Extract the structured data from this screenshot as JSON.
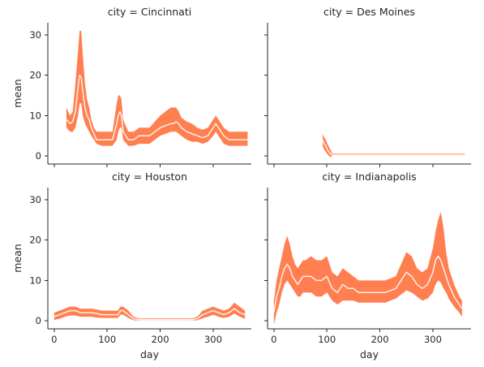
{
  "chart_data": {
    "type": "line",
    "layout": "facet-grid-2x2",
    "facet_variable": "city",
    "facet_title_template": "city = {}",
    "xlabel": "day",
    "ylabel": "mean",
    "xlim": [
      -12,
      372
    ],
    "ylim": [
      -2,
      33
    ],
    "xticks": [
      0,
      100,
      200,
      300
    ],
    "yticks": [
      0,
      10,
      20,
      30
    ],
    "grid": false,
    "colors": {
      "band": "#ff7f50",
      "line": "#fff0e6"
    },
    "band_note": "upper/lower bound band around mean line",
    "facets": [
      {
        "city": "Cincinnati",
        "title": "city = Cincinnati",
        "x": [
          23,
          30,
          35,
          40,
          45,
          48,
          51,
          54,
          58,
          62,
          66,
          70,
          75,
          80,
          90,
          100,
          110,
          118,
          121,
          124,
          127,
          130,
          140,
          150,
          160,
          170,
          180,
          190,
          200,
          210,
          220,
          225,
          230,
          235,
          240,
          250,
          260,
          270,
          280,
          290,
          300,
          305,
          310,
          320,
          330,
          340,
          350,
          360,
          365
        ],
        "mean": [
          9,
          8,
          8.5,
          11,
          17,
          20,
          19.5,
          16,
          12,
          10,
          9,
          7,
          5.5,
          4,
          4,
          4,
          4,
          8,
          10,
          11,
          10,
          6,
          4,
          4,
          5,
          5,
          5,
          6,
          7,
          7.5,
          8,
          8,
          8.5,
          8,
          7,
          6,
          5.5,
          5,
          4.5,
          5,
          7,
          8,
          7,
          5,
          4,
          4,
          4,
          4,
          4
        ],
        "lower": [
          7,
          6,
          6,
          7,
          10,
          13,
          13,
          10,
          8,
          7,
          6,
          5,
          4,
          3,
          2.5,
          2.5,
          2.5,
          4,
          6,
          7,
          7,
          4,
          2.5,
          2.5,
          3,
          3,
          3,
          4,
          5,
          5.5,
          6,
          6,
          6,
          5.5,
          5,
          4,
          3.5,
          3.5,
          3,
          3.5,
          5,
          6,
          5,
          3,
          2.5,
          2.5,
          2.5,
          2.5,
          2.5
        ],
        "upper": [
          12,
          10,
          11,
          18,
          26,
          31,
          31,
          25,
          18,
          14,
          12,
          9,
          7,
          6,
          6,
          6,
          6,
          13,
          15,
          15,
          14,
          9,
          6,
          6,
          7,
          7,
          7,
          8.5,
          10,
          11,
          12,
          12,
          12,
          11,
          9.5,
          8.5,
          8,
          7,
          6.5,
          7,
          9,
          10,
          9,
          7,
          6,
          6,
          6,
          6,
          6
        ]
      },
      {
        "city": "Des Moines",
        "title": "city = Des Moines",
        "x": [
          92,
          95,
          98,
          101,
          104,
          107,
          110,
          115,
          120,
          130,
          140,
          150,
          160,
          170,
          180,
          190,
          200,
          210,
          220,
          230,
          240,
          250,
          260,
          270,
          280,
          290,
          300,
          310,
          320,
          330,
          340,
          350,
          360
        ],
        "mean": [
          4,
          3,
          2.5,
          1.5,
          1,
          0.5,
          0.3,
          0.3,
          0.3,
          0.3,
          0.3,
          0.3,
          0.3,
          0.3,
          0.3,
          0.3,
          0.3,
          0.3,
          0.3,
          0.3,
          0.3,
          0.3,
          0.3,
          0.3,
          0.3,
          0.3,
          0.3,
          0.3,
          0.3,
          0.3,
          0.3,
          0.3,
          0.3
        ],
        "lower": [
          2.5,
          1.5,
          1,
          0.5,
          0,
          -0.3,
          0.1,
          0.1,
          0.1,
          0.1,
          0.1,
          0.1,
          0.1,
          0.1,
          0.1,
          0.1,
          0.1,
          0.1,
          0.1,
          0.1,
          0.1,
          0.1,
          0.1,
          0.1,
          0.1,
          0.1,
          0.1,
          0.1,
          0.1,
          0.1,
          0.1,
          0.1,
          0.1
        ],
        "upper": [
          5.5,
          4.5,
          4,
          3,
          2.2,
          1.5,
          0.6,
          0.6,
          0.6,
          0.6,
          0.6,
          0.6,
          0.6,
          0.6,
          0.6,
          0.6,
          0.6,
          0.6,
          0.6,
          0.6,
          0.6,
          0.6,
          0.6,
          0.6,
          0.6,
          0.6,
          0.6,
          0.6,
          0.6,
          0.6,
          0.6,
          0.6,
          0.6
        ]
      },
      {
        "city": "Houston",
        "title": "city = Houston",
        "x": [
          0,
          10,
          20,
          30,
          40,
          50,
          60,
          70,
          80,
          90,
          100,
          110,
          120,
          125,
          130,
          140,
          150,
          160,
          170,
          180,
          190,
          200,
          210,
          220,
          230,
          240,
          250,
          260,
          270,
          280,
          290,
          300,
          310,
          320,
          330,
          340,
          350,
          360
        ],
        "mean": [
          1,
          1.5,
          2,
          2.5,
          2.5,
          2,
          2,
          2,
          1.8,
          1.5,
          1.5,
          1.5,
          1.5,
          2.5,
          2.5,
          1.5,
          0.5,
          0.3,
          0.3,
          0.3,
          0.3,
          0.3,
          0.3,
          0.3,
          0.3,
          0.3,
          0.3,
          0.3,
          0.5,
          1.5,
          2,
          2.5,
          2,
          1.5,
          2,
          3,
          2,
          1.5
        ],
        "lower": [
          0.2,
          0.5,
          1,
          1.3,
          1.3,
          1,
          1,
          1,
          0.8,
          0.7,
          0.7,
          0.7,
          0.7,
          1.5,
          1.5,
          0.7,
          0.1,
          0.1,
          0.1,
          0.1,
          0.1,
          0.1,
          0.1,
          0.1,
          0.1,
          0.1,
          0.1,
          0.1,
          0.1,
          0.6,
          1,
          1.5,
          1,
          0.7,
          1,
          1.8,
          1,
          0.5
        ],
        "upper": [
          2,
          2.5,
          3,
          3.5,
          3.5,
          3,
          3,
          3,
          2.8,
          2.5,
          2.5,
          2.5,
          2.5,
          3.5,
          3.5,
          2.5,
          1,
          0.6,
          0.6,
          0.6,
          0.6,
          0.6,
          0.6,
          0.6,
          0.6,
          0.6,
          0.6,
          0.6,
          1,
          2.5,
          3,
          3.5,
          3,
          2.5,
          3,
          4.5,
          3.5,
          2.5
        ]
      },
      {
        "city": "Indianapolis",
        "title": "city = Indianapolis",
        "x": [
          0,
          5,
          10,
          15,
          20,
          25,
          30,
          35,
          40,
          45,
          50,
          55,
          60,
          70,
          80,
          90,
          100,
          110,
          120,
          130,
          140,
          150,
          160,
          170,
          180,
          190,
          200,
          210,
          220,
          230,
          240,
          250,
          260,
          270,
          280,
          290,
          300,
          305,
          310,
          315,
          320,
          325,
          330,
          340,
          350,
          355
        ],
        "mean": [
          2,
          6,
          8,
          11,
          13,
          14,
          13,
          11,
          10,
          9,
          10,
          11,
          11,
          11,
          10,
          10,
          11,
          8,
          7,
          9,
          8,
          8,
          7,
          7,
          7,
          7,
          7,
          7,
          7.5,
          8,
          10,
          12,
          11,
          9,
          8,
          9,
          12,
          15,
          16,
          15,
          13,
          11,
          9,
          6,
          4,
          3
        ],
        "lower": [
          -1,
          2,
          4,
          7,
          9,
          10,
          9,
          8,
          7,
          6,
          6,
          7,
          7,
          7,
          6,
          6,
          7,
          5,
          4,
          5,
          5,
          5,
          4.5,
          4.5,
          4.5,
          4.5,
          4.5,
          4.5,
          5,
          5.5,
          6.5,
          7.5,
          7,
          6,
          5,
          5.5,
          7,
          9,
          10,
          9.5,
          8,
          7,
          5.5,
          3.5,
          2,
          1
        ],
        "upper": [
          5,
          10,
          13,
          16,
          19,
          21,
          19,
          16,
          14,
          13,
          14,
          15,
          15,
          16,
          15,
          15,
          16,
          12,
          11,
          13,
          12,
          11,
          10,
          10,
          10,
          10,
          10,
          10,
          10.5,
          11,
          14,
          17,
          16,
          13,
          12,
          13,
          18,
          22,
          25,
          27,
          23,
          17,
          13,
          9,
          6,
          5
        ]
      }
    ]
  }
}
